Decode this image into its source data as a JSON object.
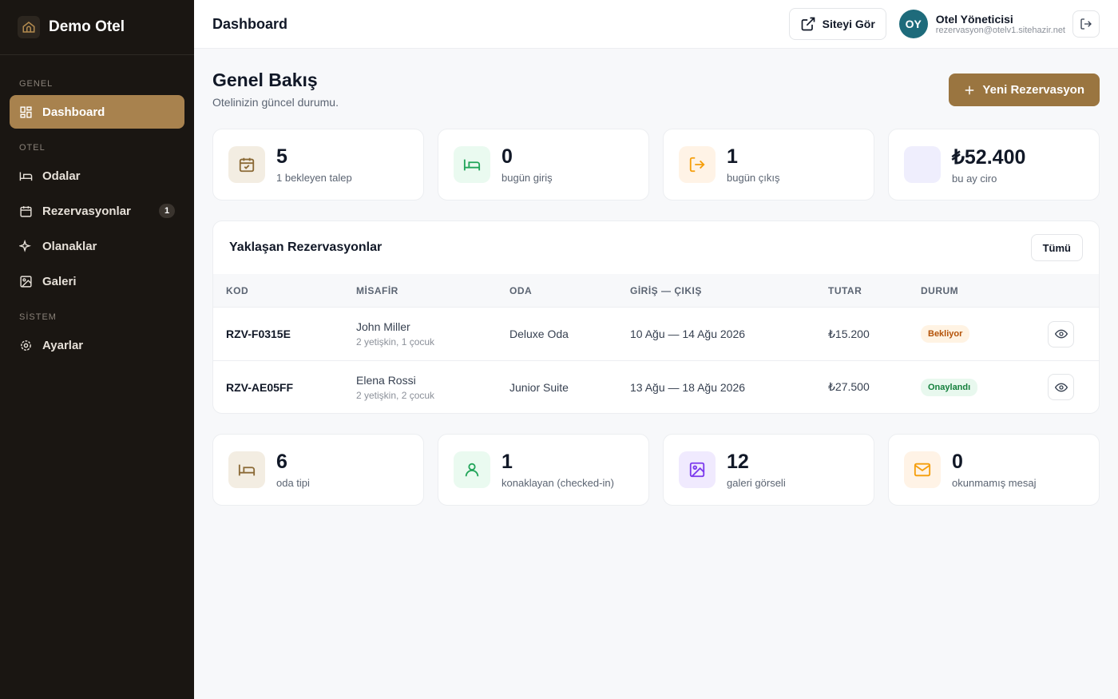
{
  "sidebar": {
    "brand": "Demo Otel",
    "sections": [
      {
        "title": "GENEL",
        "items": [
          {
            "label": "Dashboard"
          }
        ]
      },
      {
        "title": "OTEL",
        "items": [
          {
            "label": "Odalar"
          },
          {
            "label": "Rezervasyonlar",
            "badge": 1
          },
          {
            "label": "Olanaklar"
          },
          {
            "label": "Galeri"
          }
        ]
      },
      {
        "title": "SİSTEM",
        "items": [
          {
            "label": "Ayarlar"
          }
        ]
      }
    ]
  },
  "header": {
    "title": "Dashboard",
    "site_button": "Siteyi Gör",
    "user": {
      "initials": "OY",
      "name": "Otel Yöneticisi",
      "email": "rezervasyon@otelv1.sitehazir.net"
    }
  },
  "page": {
    "title": "Genel Bakış",
    "subtitle": "Otelinizin güncel durumu.",
    "new_button": "Yeni Rezervasyon"
  },
  "stats": [
    {
      "value": 5,
      "label": "1 bekleyen talep"
    },
    {
      "value": 0,
      "label": "bugün giriş"
    },
    {
      "value": 1,
      "label": "bugün çıkış"
    },
    {
      "value": "₺52.400",
      "label": "bu ay ciro"
    }
  ],
  "reservations": {
    "title": "Yaklaşan Rezervasyonlar",
    "all_button": "Tümü",
    "columns": [
      "KOD",
      "MİSAFİR",
      "ODA",
      "GİRİŞ — ÇIKIŞ",
      "TUTAR",
      "DURUM"
    ],
    "rows": [
      {
        "code": "RZV-F0315E",
        "guest": "John Miller",
        "guest_detail": "2 yetişkin, 1 çocuk",
        "room": "Deluxe Oda",
        "dates": "10 Ağu — 14 Ağu 2026",
        "amount": "₺15.200",
        "status": "Bekliyor"
      },
      {
        "code": "RZV-AE05FF",
        "guest": "Elena Rossi",
        "guest_detail": "2 yetişkin, 2 çocuk",
        "room": "Junior Suite",
        "dates": "13 Ağu — 18 Ağu 2026",
        "amount": "₺27.500",
        "status": "Onaylandı"
      }
    ]
  },
  "summary": [
    {
      "value": 6,
      "label": "oda tipi"
    },
    {
      "value": 1,
      "label": "konaklayan (checked-in)"
    },
    {
      "value": 12,
      "label": "galeri görseli"
    },
    {
      "value": 0,
      "label": "okunmamış mesaj"
    }
  ]
}
